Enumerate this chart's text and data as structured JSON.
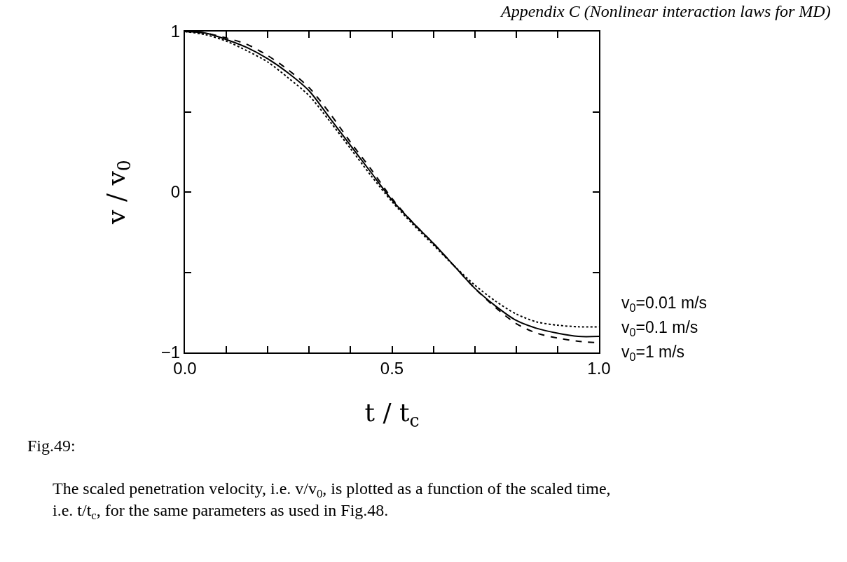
{
  "chart_data": {
    "type": "line",
    "xlabel": "t / t$_{c}$",
    "ylabel": "v / v$_{0}$",
    "x": [
      0,
      0.05,
      0.1,
      0.15,
      0.2,
      0.25,
      0.3,
      0.35,
      0.4,
      0.45,
      0.5,
      0.55,
      0.6,
      0.65,
      0.7,
      0.75,
      0.8,
      0.85,
      0.9,
      0.95,
      1
    ],
    "xlim": [
      0,
      1
    ],
    "ylim": [
      -1,
      1
    ],
    "xticks": [
      {
        "value": 0,
        "label": "0.0"
      },
      {
        "value": 0.1,
        "label": null
      },
      {
        "value": 0.2,
        "label": null
      },
      {
        "value": 0.3,
        "label": null
      },
      {
        "value": 0.4,
        "label": null
      },
      {
        "value": 0.5,
        "label": "0.5"
      },
      {
        "value": 0.6,
        "label": null
      },
      {
        "value": 0.7,
        "label": null
      },
      {
        "value": 0.8,
        "label": null
      },
      {
        "value": 0.9,
        "label": null
      },
      {
        "value": 1,
        "label": "1.0"
      }
    ],
    "yticks": [
      {
        "value": -1,
        "label": "−1"
      },
      {
        "value": -0.5,
        "label": null
      },
      0,
      {
        "value": 0.5,
        "label": null
      },
      1
    ],
    "series": [
      {
        "name": "v$_{0}$=0.01 m/s",
        "color": "#000000",
        "line_style": "dotted",
        "values": [
          1,
          0.98,
          0.94,
          0.88,
          0.81,
          0.71,
          0.6,
          0.44,
          0.27,
          0.1,
          -0.06,
          -0.2,
          -0.33,
          -0.46,
          -0.58,
          -0.68,
          -0.76,
          -0.81,
          -0.83,
          -0.84,
          -0.84
        ]
      },
      {
        "name": "v$_{0}$=0.1 m/s",
        "color": "#000000",
        "line_style": "solid",
        "values": [
          1,
          0.99,
          0.95,
          0.9,
          0.83,
          0.74,
          0.63,
          0.46,
          0.29,
          0.12,
          -0.05,
          -0.19,
          -0.32,
          -0.46,
          -0.6,
          -0.71,
          -0.8,
          -0.85,
          -0.88,
          -0.9,
          -0.9
        ]
      },
      {
        "name": "v$_{0}$=1 m/s",
        "color": "#000000",
        "line_style": "dashed",
        "values": [
          1,
          0.99,
          0.96,
          0.92,
          0.85,
          0.76,
          0.65,
          0.49,
          0.31,
          0.14,
          -0.04,
          -0.19,
          -0.32,
          -0.46,
          -0.6,
          -0.72,
          -0.82,
          -0.88,
          -0.91,
          -0.93,
          -0.94
        ]
      }
    ],
    "annotations": [
      "Appendix C (Nonlinear interaction laws for MD)",
      "Fig.49:",
      "The scaled penetration velocity, i.e. v/v$_{0}$, is plotted as a function of the scaled time, i.e. t/t$_{c}$, for the same parameters as used in Fig.48."
    ]
  }
}
